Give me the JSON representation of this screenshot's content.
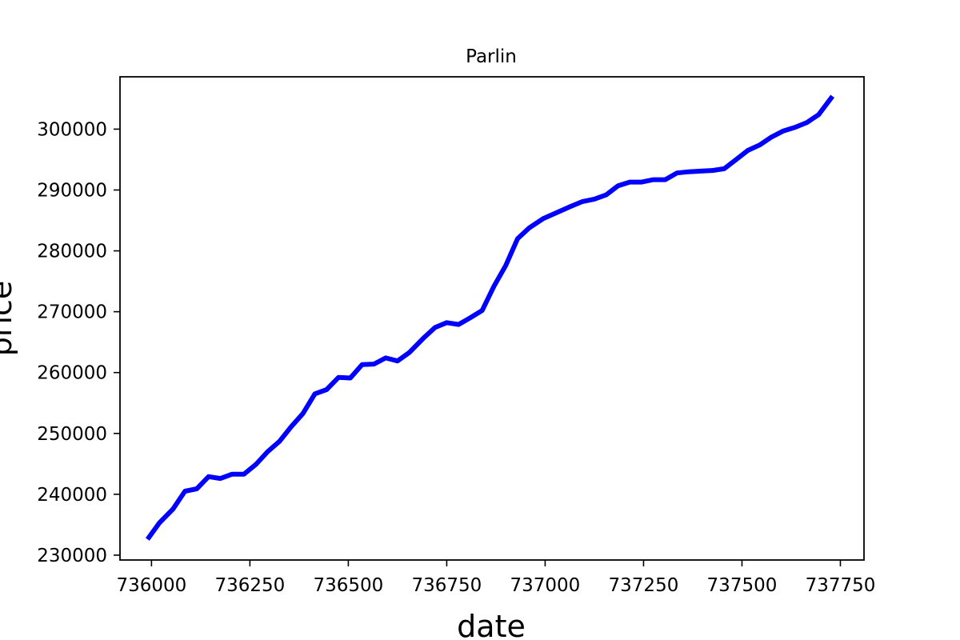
{
  "chart_data": {
    "type": "line",
    "title": "Parlin",
    "xlabel": "date",
    "ylabel": "price",
    "xlim": [
      735920,
      737810
    ],
    "ylim": [
      229200,
      308600
    ],
    "xticks": [
      736000,
      736250,
      736500,
      736750,
      737000,
      737250,
      737500,
      737750
    ],
    "yticks": [
      230000,
      240000,
      250000,
      260000,
      270000,
      280000,
      290000,
      300000
    ],
    "grid": false,
    "series": [
      {
        "color": "#0000ff",
        "x": [
          735990,
          736020,
          736055,
          736085,
          736115,
          736145,
          736175,
          736205,
          736235,
          736265,
          736295,
          736325,
          736355,
          736385,
          736415,
          736445,
          736475,
          736505,
          736535,
          736565,
          736595,
          736625,
          736655,
          736690,
          736720,
          736750,
          736780,
          736810,
          736840,
          736870,
          736900,
          736930,
          736960,
          736995,
          737030,
          737065,
          737095,
          737125,
          737155,
          737185,
          737215,
          737245,
          737275,
          737305,
          737335,
          737365,
          737395,
          737425,
          737455,
          737485,
          737515,
          737545,
          737575,
          737605,
          737635,
          737665,
          737695,
          737730
        ],
        "y": [
          232600,
          235300,
          237600,
          240500,
          240900,
          242900,
          242600,
          243300,
          243300,
          244900,
          247000,
          248700,
          251100,
          253300,
          256500,
          257200,
          259200,
          259100,
          261300,
          261400,
          262400,
          261900,
          263300,
          265600,
          267400,
          268200,
          267900,
          269000,
          270200,
          274200,
          277600,
          282000,
          283800,
          285300,
          286300,
          287300,
          288100,
          288500,
          289200,
          290700,
          291300,
          291300,
          291700,
          291700,
          292800,
          293000,
          293100,
          293200,
          293500,
          295000,
          296500,
          297400,
          298700,
          299700,
          300300,
          301100,
          302400,
          305400
        ]
      }
    ]
  }
}
